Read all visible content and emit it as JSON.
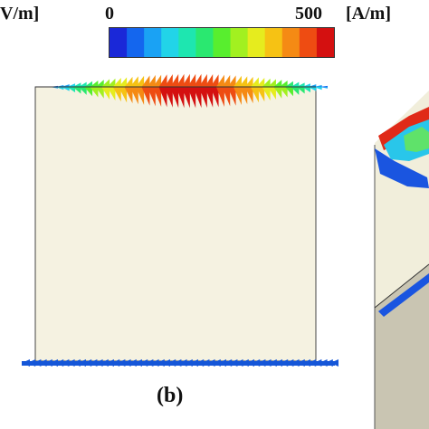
{
  "labels": {
    "unit_left": "V/m]",
    "scale_min": "0",
    "scale_max": "500",
    "unit_right": "[A/m]",
    "panel": "(b)"
  },
  "colorbar": {
    "colors": [
      "#1a28d8",
      "#1466ee",
      "#1aa2f4",
      "#22d4e8",
      "#1ee6b0",
      "#2ae870",
      "#58ee2e",
      "#a2f020",
      "#e6ec1e",
      "#f6c214",
      "#f58a14",
      "#ee4c12",
      "#d41010"
    ]
  },
  "panel_colors": {
    "cube_face": "#f5f2e1",
    "front_side": "#f1eedb",
    "shade_face": "#dad6c4",
    "bottom_vectors": "#1556d8"
  }
}
